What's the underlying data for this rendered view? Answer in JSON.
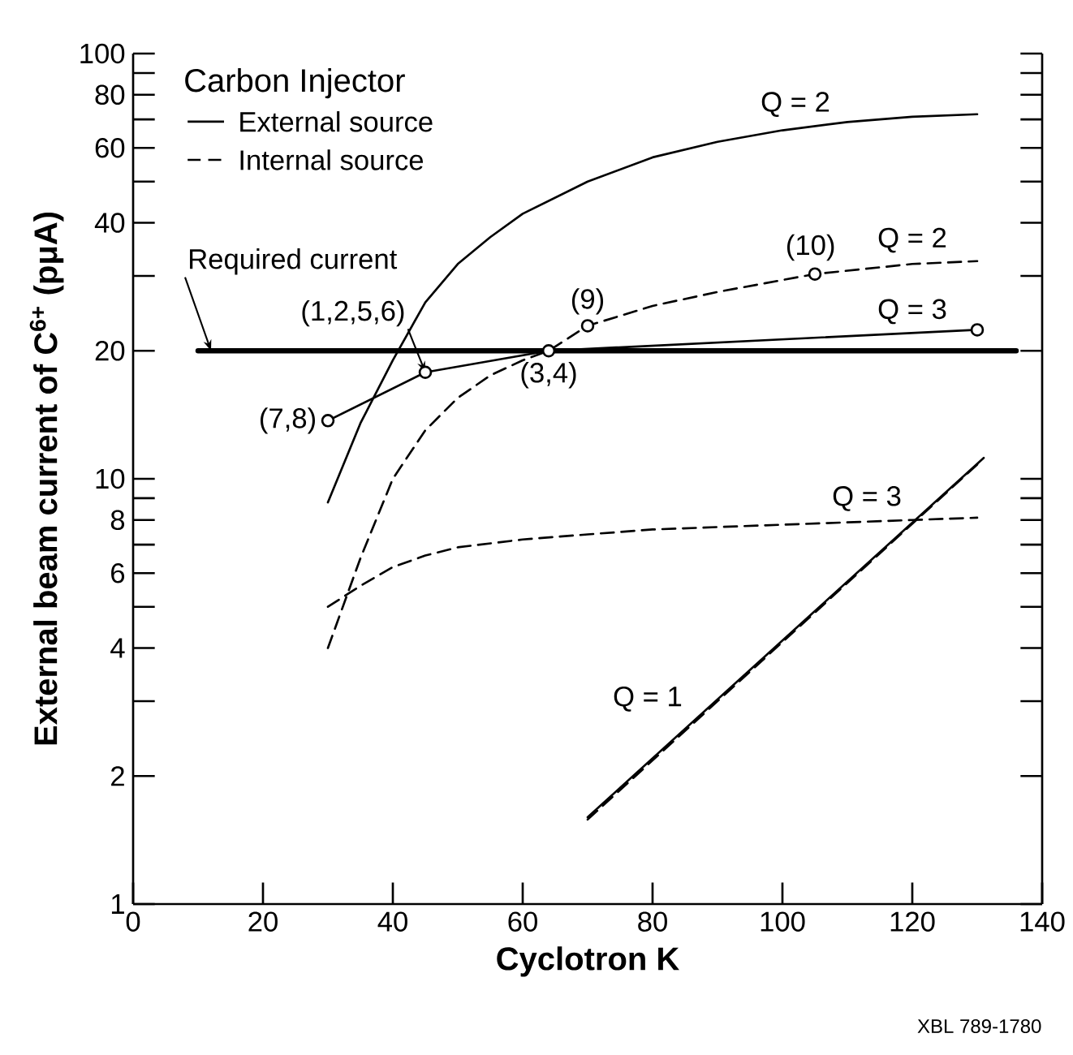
{
  "chart_data": {
    "type": "line",
    "xlabel": "Cyclotron K",
    "ylabel": "External beam current of C$^{6+}$ (pμA)",
    "legend_title": "Carbon Injector",
    "log": "y",
    "xlim": [
      0,
      140
    ],
    "ylim": [
      1,
      100
    ],
    "xticks": [
      0,
      20,
      40,
      60,
      80,
      100,
      120,
      140
    ],
    "yticks": [
      1,
      2,
      {
        "value": 3,
        "label": null
      },
      4,
      {
        "value": 5,
        "label": null
      },
      6,
      {
        "value": 7,
        "label": null
      },
      8,
      {
        "value": 9,
        "label": null
      },
      10,
      20,
      {
        "value": 30,
        "label": null
      },
      40,
      {
        "value": 50,
        "label": null
      },
      60,
      {
        "value": 70,
        "label": null
      },
      80,
      {
        "value": 90,
        "label": null
      },
      100
    ],
    "grid": false,
    "marker": "none",
    "series": [
      {
        "color": "#000000",
        "line_style": "solid",
        "x": [
          30,
          35,
          40,
          45,
          50,
          55,
          60,
          70,
          80,
          90,
          100,
          110,
          120,
          130
        ],
        "values": [
          8.8,
          13.5,
          19,
          26,
          32,
          37,
          42,
          50,
          57,
          62,
          66,
          69,
          71,
          72
        ]
      },
      {
        "color": "#000000",
        "line_style": "dashed",
        "x": [
          30,
          35,
          40,
          45,
          50,
          55,
          60,
          64,
          70,
          80,
          90,
          105,
          120,
          130
        ],
        "values": [
          4,
          6.5,
          10,
          13,
          15.5,
          17.5,
          19,
          20,
          22.9,
          25.5,
          27.5,
          30.3,
          32,
          32.5
        ]
      },
      {
        "color": "#000000",
        "line_style": "solid",
        "x": [
          30,
          45,
          64,
          130
        ],
        "values": [
          13.7,
          17.8,
          20,
          22.4
        ]
      },
      {
        "color": "#000000",
        "line_style": "dashed",
        "x": [
          30,
          35,
          40,
          45,
          50,
          60,
          70,
          80,
          100,
          120,
          130
        ],
        "values": [
          5,
          5.6,
          6.2,
          6.6,
          6.9,
          7.2,
          7.4,
          7.6,
          7.8,
          8,
          8.1
        ]
      },
      {
        "color": "#000000",
        "line_style": "solid",
        "x": [
          70,
          131
        ],
        "values": [
          1.6,
          11.2
        ]
      },
      {
        "color": "#000000",
        "line_style": "dashed",
        "x": [
          70,
          130
        ],
        "values": [
          1.58,
          10.8
        ]
      },
      {
        "color": "#000000",
        "line_style": "solid",
        "x": [
          10,
          136
        ],
        "values": [
          20,
          20
        ]
      },
      {
        "type": "scatter",
        "marker": "circle",
        "color": "#000000",
        "x": [
          30,
          45,
          64,
          70,
          105,
          130
        ],
        "values": [
          13.7,
          17.8,
          20,
          22.9,
          30.3,
          22.4
        ]
      }
    ],
    "annotations": [
      "External source",
      "Internal source",
      "XBL 789-1780",
      {
        "text": "Q = 2",
        "x": 102,
        "y": 66
      },
      {
        "text": "Q = 2",
        "x": 120,
        "y": 32
      },
      {
        "text": "Q = 3",
        "x": 120,
        "y": 22
      },
      {
        "text": "Q = 3",
        "x": 113,
        "y": 7.9
      },
      {
        "text": "Q = 1",
        "x": 86,
        "y": 2.7
      },
      {
        "text": "Required current",
        "x": 12,
        "y": 20
      },
      {
        "text": "(1,2,5,6)",
        "x": 45,
        "y": 17.8
      },
      {
        "text": "(7,8)",
        "x": 30,
        "y": 13.7
      },
      {
        "text": "(3,4)",
        "x": 64,
        "y": 20
      },
      {
        "text": "(9)",
        "x": 70,
        "y": 22.9
      },
      {
        "text": "(10)",
        "x": 105,
        "y": 30.3
      }
    ]
  }
}
